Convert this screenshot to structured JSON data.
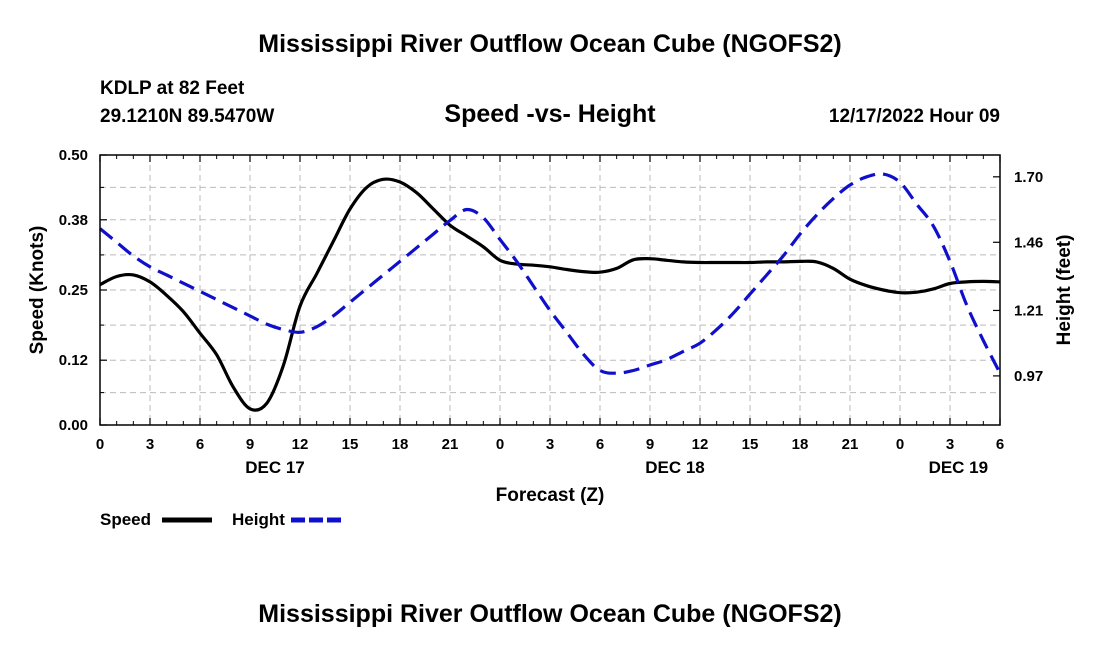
{
  "header": {
    "title": "Mississippi River Outflow Ocean Cube (NGOFS2)",
    "station": "KDLP at 82 Feet",
    "coords": "29.1210N  89.5470W",
    "subtitle": "Speed -vs- Height",
    "datetime": "12/17/2022 Hour 09"
  },
  "footer": {
    "title": "Mississippi River Outflow Ocean Cube (NGOFS2)"
  },
  "colors": {
    "speed": "#000000",
    "height": "#1010cc",
    "grid": "#bbbbbb"
  },
  "legend": {
    "speed_label": "Speed",
    "height_label": "Height"
  },
  "chart_data": {
    "type": "line",
    "title": "Speed -vs- Height",
    "xlabel": "Forecast (Z)",
    "ylabel": "Speed (Knots)",
    "y2label": "Height (feet)",
    "xlim": [
      0,
      54
    ],
    "ylim": [
      0,
      0.5
    ],
    "y2lim": [
      0.79,
      1.78
    ],
    "x_ticks": [
      0,
      3,
      6,
      9,
      12,
      15,
      18,
      21,
      24,
      27,
      30,
      33,
      36,
      39,
      42,
      45,
      48,
      51,
      54
    ],
    "x_tick_labels": [
      "0",
      "3",
      "6",
      "9",
      "12",
      "15",
      "18",
      "21",
      "0",
      "3",
      "6",
      "9",
      "12",
      "15",
      "18",
      "21",
      "0",
      "3",
      "6"
    ],
    "day_labels": [
      {
        "x": 10.5,
        "label": "DEC 17"
      },
      {
        "x": 34.5,
        "label": "DEC 18"
      },
      {
        "x": 51.5,
        "label": "DEC 19"
      }
    ],
    "y_ticks": [
      0.0,
      0.12,
      0.25,
      0.38,
      0.5
    ],
    "y_tick_labels": [
      "0.00",
      "0.12",
      "0.25",
      "0.38",
      "0.50"
    ],
    "y2_ticks": [
      0.97,
      1.21,
      1.46,
      1.7
    ],
    "y2_tick_labels": [
      "0.97",
      "1.21",
      "1.46",
      "1.70"
    ],
    "grid": true,
    "series": [
      {
        "name": "Speed",
        "axis": "left",
        "style": "solid",
        "x": [
          0,
          1,
          2,
          3,
          4,
          5,
          6,
          7,
          8,
          9,
          10,
          11,
          12,
          13,
          14,
          15,
          16,
          17,
          18,
          19,
          20,
          21,
          22,
          23,
          24,
          25,
          26,
          27,
          28,
          29,
          30,
          31,
          32,
          33,
          34,
          35,
          36,
          37,
          38,
          39,
          40,
          41,
          42,
          43,
          44,
          45,
          46,
          47,
          48,
          49,
          50,
          51,
          52,
          53,
          54
        ],
        "values": [
          0.26,
          0.275,
          0.278,
          0.265,
          0.24,
          0.21,
          0.17,
          0.13,
          0.07,
          0.03,
          0.04,
          0.11,
          0.22,
          0.28,
          0.34,
          0.4,
          0.44,
          0.455,
          0.45,
          0.43,
          0.4,
          0.37,
          0.35,
          0.33,
          0.305,
          0.298,
          0.296,
          0.293,
          0.288,
          0.284,
          0.283,
          0.29,
          0.306,
          0.308,
          0.305,
          0.302,
          0.301,
          0.301,
          0.301,
          0.301,
          0.302,
          0.302,
          0.303,
          0.302,
          0.29,
          0.27,
          0.258,
          0.25,
          0.245,
          0.246,
          0.252,
          0.262,
          0.265,
          0.266,
          0.265
        ]
      },
      {
        "name": "Height",
        "axis": "right",
        "style": "dashed",
        "x": [
          0,
          1,
          2,
          3,
          4,
          5,
          6,
          7,
          8,
          9,
          10,
          11,
          12,
          13,
          14,
          15,
          16,
          17,
          18,
          19,
          20,
          21,
          22,
          23,
          24,
          25,
          26,
          27,
          28,
          29,
          30,
          31,
          32,
          33,
          34,
          35,
          36,
          37,
          38,
          39,
          40,
          41,
          42,
          43,
          44,
          45,
          46,
          47,
          48,
          49,
          50,
          51,
          52,
          53,
          54
        ],
        "values": [
          1.51,
          1.46,
          1.41,
          1.37,
          1.34,
          1.31,
          1.28,
          1.25,
          1.22,
          1.19,
          1.16,
          1.14,
          1.13,
          1.15,
          1.19,
          1.24,
          1.29,
          1.34,
          1.39,
          1.44,
          1.49,
          1.54,
          1.58,
          1.55,
          1.47,
          1.39,
          1.3,
          1.21,
          1.13,
          1.05,
          0.99,
          0.98,
          0.99,
          1.01,
          1.03,
          1.06,
          1.09,
          1.14,
          1.2,
          1.27,
          1.34,
          1.41,
          1.49,
          1.56,
          1.62,
          1.67,
          1.7,
          1.71,
          1.68,
          1.6,
          1.52,
          1.39,
          1.23,
          1.1,
          0.98
        ]
      }
    ]
  }
}
